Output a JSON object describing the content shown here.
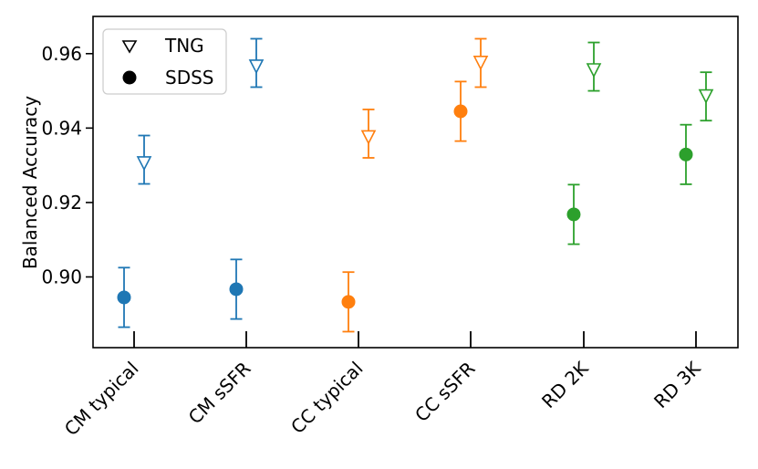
{
  "chart_data": {
    "type": "scatter",
    "title": "",
    "xlabel": "",
    "ylabel": "Balanced Accuracy",
    "categories": [
      "CM typical",
      "CM sSFR",
      "CC typical",
      "CC sSFR",
      "RD 2K",
      "RD 3K"
    ],
    "category_colors": [
      "#1f77b4",
      "#1f77b4",
      "#ff7f0e",
      "#ff7f0e",
      "#2ca02c",
      "#2ca02c"
    ],
    "yticks": [
      0.9,
      0.92,
      0.94,
      0.96
    ],
    "ytick_labels": [
      "0.90",
      "0.92",
      "0.94",
      "0.96"
    ],
    "ylim": [
      0.881,
      0.97
    ],
    "series": [
      {
        "name": "TNG",
        "marker": "open-triangle-down",
        "values": [
          0.931,
          0.957,
          0.938,
          0.958,
          0.956,
          0.949
        ],
        "err_low": [
          0.925,
          0.951,
          0.932,
          0.951,
          0.95,
          0.942
        ],
        "err_high": [
          0.938,
          0.964,
          0.945,
          0.964,
          0.963,
          0.955
        ]
      },
      {
        "name": "SDSS",
        "marker": "filled-circle",
        "values": [
          0.8945,
          0.8967,
          0.8933,
          0.9445,
          0.9168,
          0.9329
        ],
        "err_low": [
          0.8865,
          0.8887,
          0.8853,
          0.9365,
          0.9088,
          0.9249
        ],
        "err_high": [
          0.9025,
          0.9047,
          0.9013,
          0.9525,
          0.9248,
          0.9409
        ]
      }
    ],
    "legend": {
      "position": "top-left",
      "entries": [
        "TNG",
        "SDSS"
      ]
    },
    "grid": false
  }
}
